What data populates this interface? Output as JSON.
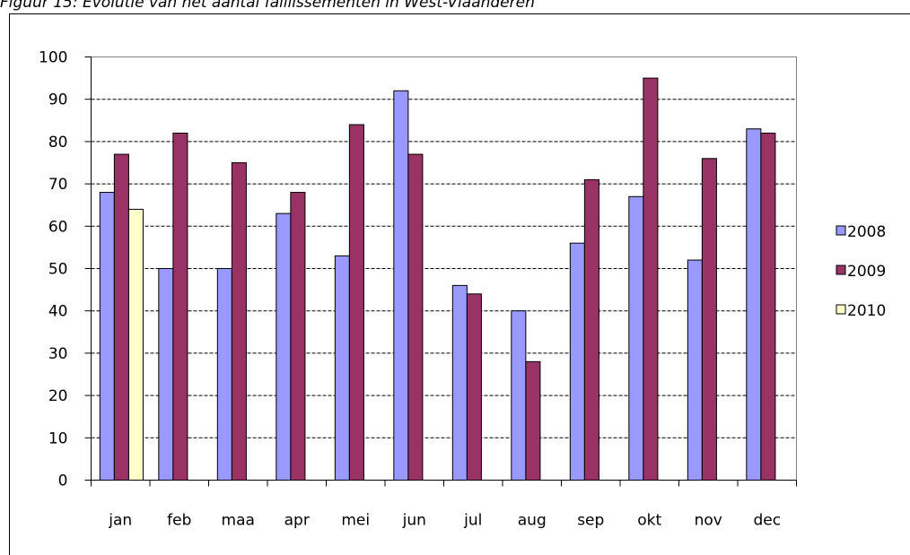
{
  "chart_data": {
    "type": "bar",
    "title": "Figuur 15: Evolutie van het aantal faillissementen in West-Vlaanderen",
    "categories": [
      "jan",
      "feb",
      "maa",
      "apr",
      "mei",
      "jun",
      "jul",
      "aug",
      "sep",
      "okt",
      "nov",
      "dec"
    ],
    "series": [
      {
        "name": "2008",
        "color": "#9999ff",
        "values": [
          68,
          50,
          50,
          63,
          53,
          92,
          46,
          40,
          56,
          67,
          52,
          83
        ]
      },
      {
        "name": "2009",
        "color": "#993366",
        "values": [
          77,
          82,
          75,
          68,
          84,
          77,
          44,
          28,
          71,
          95,
          76,
          82
        ]
      },
      {
        "name": "2010",
        "color": "#ffffcc",
        "values": [
          64,
          null,
          null,
          null,
          null,
          null,
          null,
          null,
          null,
          null,
          null,
          null
        ]
      }
    ],
    "ylim": [
      0,
      100
    ],
    "yticks": [
      0,
      10,
      20,
      30,
      40,
      50,
      60,
      70,
      80,
      90,
      100
    ],
    "grid": true,
    "legend": "right"
  }
}
